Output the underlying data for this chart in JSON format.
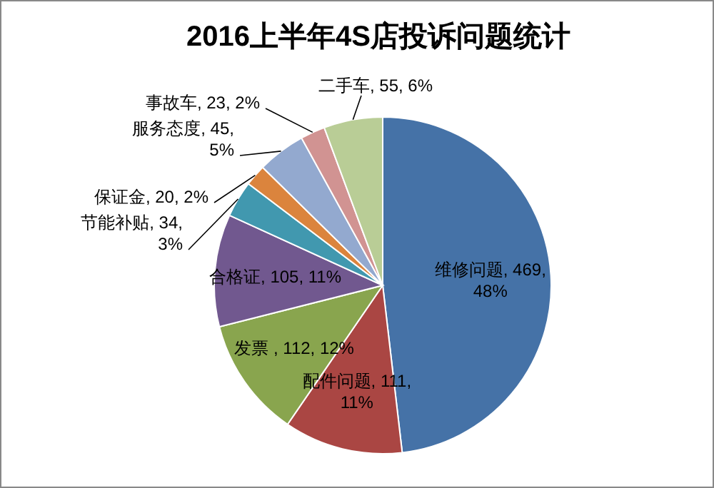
{
  "chart_data": {
    "type": "pie",
    "title": "2016上半年4S店投诉问题统计",
    "categories": [
      "维修问题",
      "配件问题",
      "发票 ",
      "合格证",
      "节能补贴",
      "保证金",
      "服务态度",
      "事故车",
      "二手车"
    ],
    "values": [
      469,
      111,
      112,
      105,
      34,
      20,
      45,
      23,
      55
    ],
    "value_labels": [
      "469, 48%",
      "111, 11%",
      "112, 12%",
      "105, 11%",
      "34, 3%",
      "20, 2%",
      "45, 5%",
      "23, 2%",
      "55, 6%"
    ],
    "colors": [
      "#4572a7",
      "#aa4643",
      "#89a54e",
      "#71588f",
      "#4198af",
      "#db843d",
      "#93a9cf",
      "#d19392",
      "#b9cd96"
    ]
  }
}
